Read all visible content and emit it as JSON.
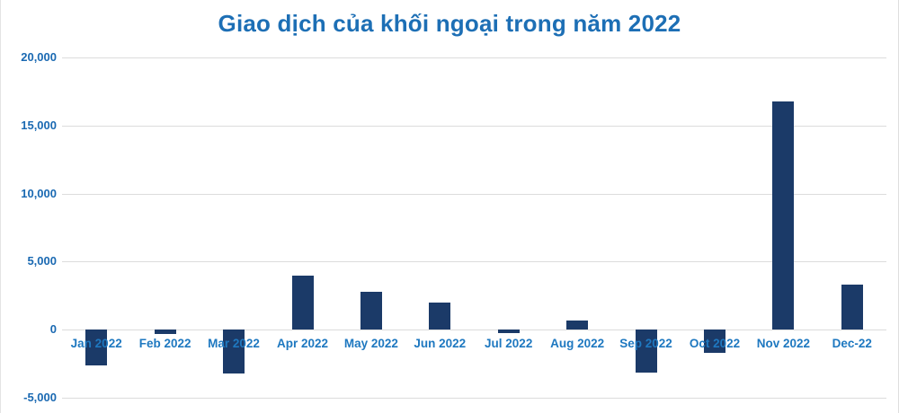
{
  "chart_data": {
    "type": "bar",
    "title": "Giao dịch của khối ngoại trong năm 2022",
    "categories": [
      "Jan 2022",
      "Feb 2022",
      "Mar 2022",
      "Apr 2022",
      "May 2022",
      "Jun 2022",
      "Jul 2022",
      "Aug 2022",
      "Sep 2022",
      "Oct 2022",
      "Nov 2022",
      "Dec-22"
    ],
    "values": [
      -2600,
      -350,
      -3200,
      4000,
      2800,
      2000,
      -250,
      700,
      -3150,
      -1700,
      16800,
      3300
    ],
    "xlabel": "",
    "ylabel": "",
    "ylim": [
      -5000,
      20000
    ],
    "yticks": [
      {
        "value": 20000,
        "label": "20,000"
      },
      {
        "value": 15000,
        "label": "15,000"
      },
      {
        "value": 10000,
        "label": "10,000"
      },
      {
        "value": 5000,
        "label": "5,000"
      },
      {
        "value": 0,
        "label": "0"
      },
      {
        "value": -5000,
        "label": "-5,000"
      }
    ],
    "grid": true,
    "legend_position": "none",
    "colors": {
      "bar": "#1b3a68",
      "title": "#1d6fb5",
      "x_labels": "#1e78c0",
      "y_labels": "#1a69b2",
      "gridline": "#dcdcdc",
      "background": "#ffffff"
    }
  }
}
